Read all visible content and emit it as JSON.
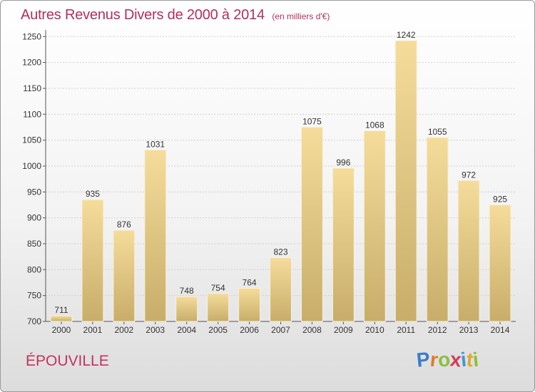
{
  "header": {
    "title": "Autres Revenus Divers de 2000 à 2014",
    "subtitle": "(en milliers d'€)"
  },
  "commune": "ÉPOUVILLE",
  "logo": {
    "letters": [
      "P",
      "r",
      "o",
      "x",
      "i",
      "t",
      "i"
    ],
    "colors": [
      "#3a7dc8",
      "#e07b2a",
      "#8cbf3a",
      "#d83a5a",
      "#3a9ad8",
      "#e0a82a",
      "#8cbf3a"
    ]
  },
  "chart_data": {
    "type": "bar",
    "categories": [
      "2000",
      "2001",
      "2002",
      "2003",
      "2004",
      "2005",
      "2006",
      "2007",
      "2008",
      "2009",
      "2010",
      "2011",
      "2012",
      "2013",
      "2014"
    ],
    "values": [
      711,
      935,
      876,
      1031,
      748,
      754,
      764,
      823,
      1075,
      996,
      1068,
      1242,
      1055,
      972,
      925
    ],
    "ylim": [
      700,
      1260
    ],
    "yticks": [
      700,
      750,
      800,
      850,
      900,
      950,
      1000,
      1050,
      1100,
      1150,
      1200,
      1250
    ],
    "grid": true,
    "bar_color_top": "#f5dc9a",
    "bar_color_bottom": "#c8ad6a"
  }
}
